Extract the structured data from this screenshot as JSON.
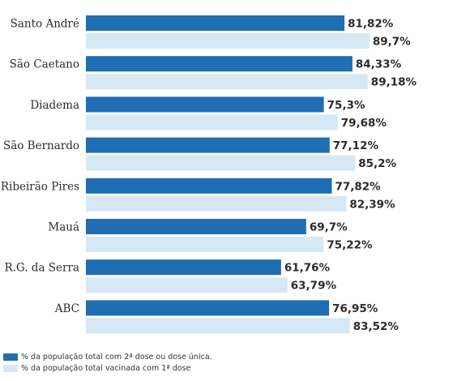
{
  "chart_data": {
    "type": "bar",
    "orientation": "horizontal",
    "categories": [
      "Santo André",
      "São Caetano",
      "Diadema",
      "São Bernardo",
      "Ribeirão Pires",
      "Mauá",
      "R.G. da Serra",
      "ABC"
    ],
    "series": [
      {
        "name": "% da população total com 2ª dose ou dose única.",
        "color": "#1f6db3",
        "values": [
          81.82,
          84.33,
          75.3,
          77.12,
          77.82,
          69.7,
          61.76,
          76.95
        ],
        "labels": [
          "81,82%",
          "84,33%",
          "75,3%",
          "77,12%",
          "77,82%",
          "69,7%",
          "61,76%",
          "76,95%"
        ]
      },
      {
        "name": "% da população total vacinada com 1ª dose",
        "color": "#d6e8f3",
        "values": [
          89.7,
          89.18,
          79.68,
          85.2,
          82.39,
          75.22,
          63.79,
          83.52
        ],
        "labels": [
          "89,7%",
          "89,18%",
          "79,68%",
          "85,2%",
          "82,39%",
          "75,22%",
          "63,79%",
          "83,52%"
        ]
      }
    ],
    "grid": false,
    "legend_position": "bottom-left"
  }
}
